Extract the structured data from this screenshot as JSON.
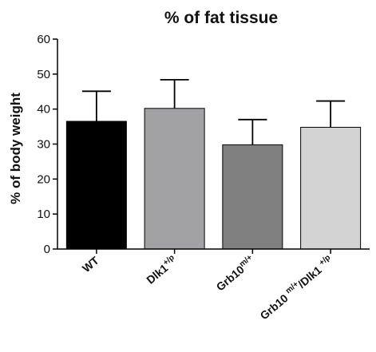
{
  "chart_data": {
    "type": "bar",
    "title": "% of fat tissue",
    "ylabel": "% of body weight",
    "xlabel": "",
    "ylim": [
      0,
      60
    ],
    "yticks": [
      0,
      10,
      20,
      30,
      40,
      50,
      60
    ],
    "grid": false,
    "categories": [
      {
        "base": "WT",
        "sup": ""
      },
      {
        "base": "Dlk1",
        "sup": "+/p"
      },
      {
        "base": "Grb10",
        "sup": "m/+"
      },
      {
        "base": "Grb10 ",
        "sup": "m/+",
        "base2": "/Dlk1 ",
        "sup2": "+/p"
      }
    ],
    "values": [
      36.5,
      40.2,
      29.8,
      34.8
    ],
    "errors": [
      8.6,
      8.2,
      7.2,
      7.5
    ],
    "colors": [
      "#000000",
      "#a2a2a4",
      "#808080",
      "#d3d3d3"
    ],
    "error_color": "#000000"
  }
}
